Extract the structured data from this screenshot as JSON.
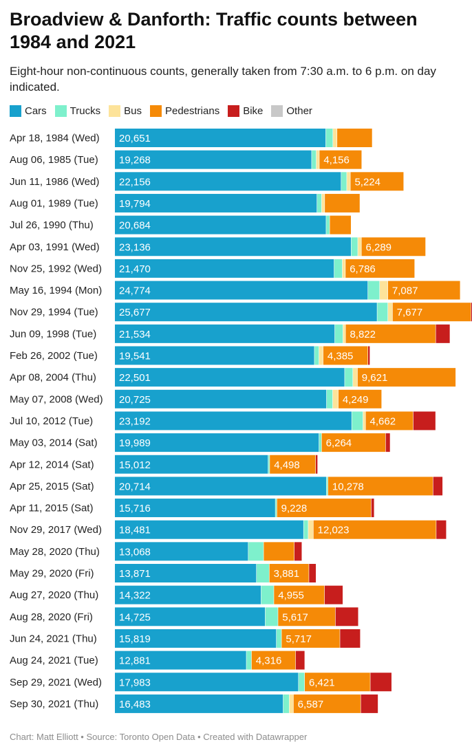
{
  "title": "Broadview & Danforth: Traffic counts between 1984 and 2021",
  "subtitle": "Eight-hour non-continuous counts, generally taken from 7:30 a.m. to 6 p.m. on day indicated.",
  "footer": "Chart: Matt Elliott • Source: Toronto Open Data • Created with Datawrapper",
  "legend": [
    {
      "name": "Cars",
      "color": "#18a1cd"
    },
    {
      "name": "Trucks",
      "color": "#7ef0cc"
    },
    {
      "name": "Bus",
      "color": "#fde39a"
    },
    {
      "name": "Pedestrians",
      "color": "#f58a07"
    },
    {
      "name": "Bike",
      "color": "#c71e1d"
    },
    {
      "name": "Other",
      "color": "#c8c8c8"
    }
  ],
  "chart_data": {
    "type": "bar",
    "orientation": "horizontal",
    "stacked": true,
    "categories": [
      "Apr 18, 1984 (Wed)",
      "Aug 06, 1985 (Tue)",
      "Jun 11, 1986 (Wed)",
      "Aug 01, 1989 (Tue)",
      "Jul 26, 1990 (Thu)",
      "Apr 03, 1991 (Wed)",
      "Nov 25, 1992 (Wed)",
      "May 16, 1994 (Mon)",
      "Nov 29, 1994 (Tue)",
      "Jun 09, 1998 (Tue)",
      "Feb 26, 2002 (Tue)",
      "Apr 08, 2004 (Thu)",
      "May 07, 2008 (Wed)",
      "Jul 10, 2012 (Tue)",
      "May 03, 2014 (Sat)",
      "Apr 12, 2014 (Sat)",
      "Apr 25, 2015 (Sat)",
      "Apr 11, 2015 (Sat)",
      "Nov 29, 2017 (Wed)",
      "May 28, 2020 (Thu)",
      "May 29, 2020 (Fri)",
      "Aug 27, 2020 (Thu)",
      "Aug 28, 2020 (Fri)",
      "Jun 24, 2021 (Thu)",
      "Aug 24, 2021 (Tue)",
      "Sep 29, 2021 (Wed)",
      "Sep 30, 2021 (Thu)"
    ],
    "series": [
      {
        "name": "Cars",
        "values": [
          20651,
          19268,
          22156,
          19794,
          20684,
          23136,
          21470,
          24774,
          25677,
          21534,
          19541,
          22501,
          20725,
          23192,
          19989,
          15012,
          20714,
          15716,
          18481,
          13068,
          13871,
          14322,
          14725,
          15819,
          12881,
          17983,
          16483
        ]
      },
      {
        "name": "Trucks",
        "values": [
          700,
          450,
          550,
          450,
          350,
          650,
          800,
          1150,
          1050,
          800,
          450,
          800,
          600,
          1100,
          250,
          150,
          150,
          150,
          450,
          1500,
          1250,
          1250,
          1250,
          500,
          500,
          600,
          600
        ]
      },
      {
        "name": "Bus",
        "values": [
          400,
          300,
          350,
          300,
          0,
          350,
          300,
          800,
          450,
          250,
          400,
          450,
          550,
          250,
          0,
          0,
          0,
          0,
          500,
          0,
          0,
          0,
          0,
          0,
          0,
          0,
          400
        ]
      },
      {
        "name": "Pedestrians",
        "values": [
          3450,
          4156,
          5224,
          3450,
          2100,
          6289,
          6786,
          7087,
          7677,
          8822,
          4385,
          9621,
          4249,
          4662,
          6264,
          4498,
          10278,
          9228,
          12023,
          3000,
          3881,
          4955,
          5617,
          5717,
          4316,
          6421,
          6587
        ]
      },
      {
        "name": "Bike",
        "values": [
          0,
          0,
          0,
          0,
          0,
          0,
          0,
          0,
          150,
          1400,
          200,
          0,
          0,
          2200,
          450,
          200,
          950,
          300,
          1000,
          750,
          700,
          1800,
          2250,
          2000,
          900,
          2100,
          1700
        ]
      },
      {
        "name": "Other",
        "values": [
          0,
          0,
          0,
          0,
          0,
          0,
          0,
          0,
          0,
          0,
          0,
          0,
          0,
          0,
          0,
          0,
          0,
          0,
          0,
          0,
          0,
          0,
          0,
          0,
          0,
          0,
          0
        ]
      }
    ],
    "labeled_series": [
      "Cars",
      "Pedestrians"
    ],
    "pedestrian_labels": [
      "",
      "4,156",
      "5,224",
      "",
      "",
      "6,289",
      "6,786",
      "7,087",
      "7,677",
      "8,822",
      "4,385",
      "9,621",
      "4,249",
      "4,662",
      "6,264",
      "4,498",
      "10,278",
      "9,228",
      "12,023",
      "",
      "3,881",
      "4,955",
      "5,617",
      "5,717",
      "4,316",
      "6,421",
      "6,587"
    ],
    "xlim": [
      0,
      34000
    ],
    "grid": false
  }
}
